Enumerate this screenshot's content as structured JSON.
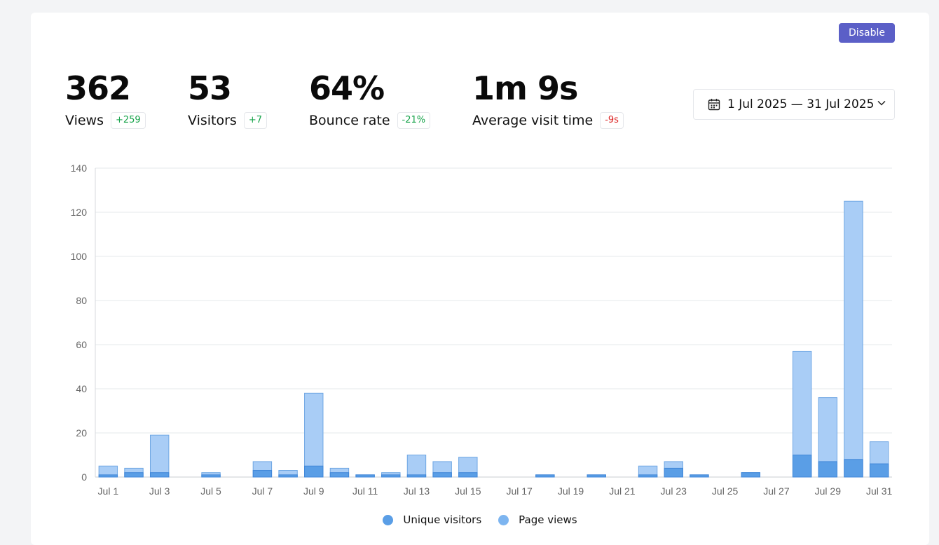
{
  "header": {
    "disable_label": "Disable"
  },
  "stats": [
    {
      "value": "362",
      "label": "Views",
      "delta": "+259",
      "trend": "up"
    },
    {
      "value": "53",
      "label": "Visitors",
      "delta": "+7",
      "trend": "up"
    },
    {
      "value": "64%",
      "label": "Bounce rate",
      "delta": "-21%",
      "trend": "up"
    },
    {
      "value": "1m 9s",
      "label": "Average visit time",
      "delta": "-9s",
      "trend": "down"
    }
  ],
  "date_range": {
    "label": "1 Jul 2025 — 31 Jul 2025",
    "icon": "calendar-icon",
    "chevron": "chevron-down-icon"
  },
  "colors": {
    "accent": "#5b5fc7",
    "positive": "#16a34a",
    "negative": "#dc2626",
    "unique_visitors": "#5a9ee6",
    "page_views": "#a9cdf6"
  },
  "chart_data": {
    "type": "bar",
    "stacked": true,
    "categories": [
      "Jul 1",
      "Jul 2",
      "Jul 3",
      "Jul 4",
      "Jul 5",
      "Jul 6",
      "Jul 7",
      "Jul 8",
      "Jul 9",
      "Jul 10",
      "Jul 11",
      "Jul 12",
      "Jul 13",
      "Jul 14",
      "Jul 15",
      "Jul 16",
      "Jul 17",
      "Jul 18",
      "Jul 19",
      "Jul 20",
      "Jul 21",
      "Jul 22",
      "Jul 23",
      "Jul 24",
      "Jul 25",
      "Jul 26",
      "Jul 27",
      "Jul 28",
      "Jul 29",
      "Jul 30",
      "Jul 31"
    ],
    "x_tick_labels": [
      "Jul 1",
      "Jul 3",
      "Jul 5",
      "Jul 7",
      "Jul 9",
      "Jul 11",
      "Jul 13",
      "Jul 15",
      "Jul 17",
      "Jul 19",
      "Jul 21",
      "Jul 23",
      "Jul 25",
      "Jul 27",
      "Jul 29",
      "Jul 31"
    ],
    "series": [
      {
        "name": "Unique visitors",
        "values": [
          1,
          2,
          2,
          0,
          1,
          0,
          3,
          1,
          5,
          2,
          1,
          1,
          1,
          2,
          2,
          0,
          0,
          1,
          0,
          1,
          0,
          1,
          4,
          1,
          0,
          2,
          0,
          10,
          7,
          8,
          6
        ]
      },
      {
        "name": "Page views",
        "values": [
          5,
          4,
          19,
          0,
          2,
          0,
          7,
          3,
          38,
          4,
          1,
          2,
          10,
          7,
          9,
          0,
          0,
          1,
          0,
          1,
          0,
          5,
          7,
          1,
          0,
          2,
          0,
          57,
          36,
          125,
          16
        ]
      }
    ],
    "ylim": [
      0,
      140
    ],
    "y_ticks": [
      0,
      20,
      40,
      60,
      80,
      100,
      120,
      140
    ],
    "grid": true,
    "legend": "bottom"
  }
}
